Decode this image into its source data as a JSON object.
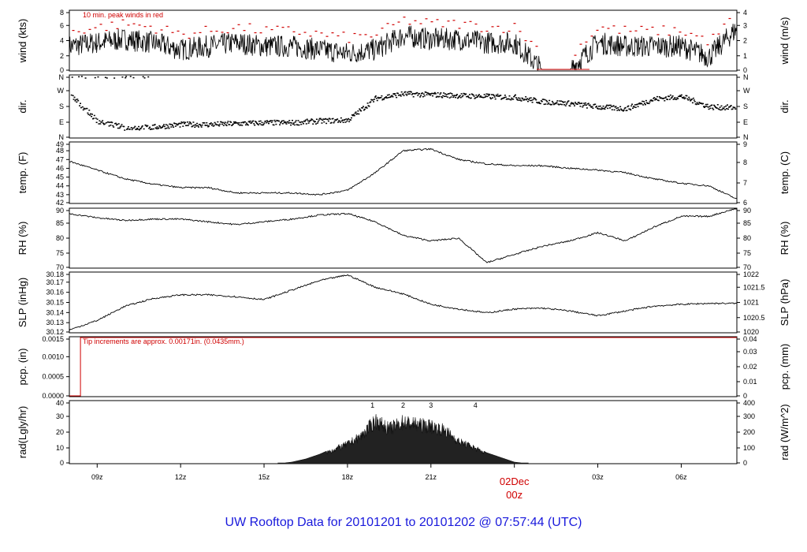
{
  "title": "UW Rooftop Data for 20101201  to  20101202 @ 07:57:44  (UTC)",
  "xaxis": {
    "hours": [
      "09z",
      "12z",
      "15z",
      "18z",
      "21z",
      "03z",
      "06z"
    ],
    "date_label": "02Dec",
    "midnight_label": "00z"
  },
  "colors": {
    "trace": "#000000",
    "peak": "#d00000",
    "title": "#1a1adc",
    "rad_markers": "#8a2be2"
  },
  "chart_data": [
    {
      "type": "line",
      "ylabel_left": "wind (kts)",
      "ylabel_right": "wind (m/s)",
      "ylim": [
        0,
        8.6
      ],
      "yticks_left": [
        "0",
        "2",
        "4",
        "6",
        "8"
      ],
      "yticks_right": [
        "0",
        "1",
        "2",
        "3",
        "4"
      ],
      "annotation": "10 min. peak winds in red",
      "series": [
        {
          "x": [
            8,
            9,
            10,
            11,
            12,
            13,
            14,
            15,
            16,
            17,
            18,
            19,
            20,
            21,
            22,
            23,
            24,
            25,
            26,
            27,
            28,
            29,
            30,
            31,
            32
          ],
          "values": [
            3.5,
            4,
            4.5,
            4,
            3,
            3.5,
            4,
            3.5,
            3.5,
            3,
            2.5,
            3,
            5,
            4.5,
            4.5,
            4,
            4,
            0.2,
            0.2,
            4,
            3.5,
            3.5,
            3.5,
            2,
            6
          ]
        }
      ]
    },
    {
      "type": "scatter",
      "ylabel_left": "dir.",
      "ylabel_right": "dir.",
      "ylim": [
        0,
        360
      ],
      "yticks_left": [
        "N",
        "E",
        "S",
        "W",
        "N"
      ],
      "yticks_right": [
        "N",
        "E",
        "S",
        "W",
        "N"
      ],
      "series": [
        {
          "x": [
            8,
            9,
            10,
            11,
            12,
            13,
            14,
            15,
            16,
            17,
            18,
            19,
            20,
            21,
            22,
            23,
            24,
            25,
            26,
            27,
            28,
            29,
            30,
            31,
            32
          ],
          "values": [
            250,
            100,
            60,
            65,
            80,
            80,
            85,
            90,
            90,
            100,
            105,
            230,
            255,
            250,
            245,
            240,
            235,
            210,
            200,
            180,
            170,
            225,
            240,
            180,
            175
          ]
        }
      ]
    },
    {
      "type": "line",
      "ylabel_left": "temp. (F)",
      "ylabel_right": "temp. (C)",
      "ylim": [
        42,
        49
      ],
      "yticks_left": [
        "42",
        "43",
        "44",
        "45",
        "46",
        "47",
        "48",
        "49"
      ],
      "yticks_right": [
        "6",
        "7",
        "8",
        "9"
      ],
      "series": [
        {
          "x": [
            8,
            9,
            10,
            11,
            12,
            13,
            14,
            15,
            16,
            17,
            18,
            19,
            20,
            21,
            22,
            23,
            24,
            25,
            26,
            27,
            28,
            29,
            30,
            31,
            32
          ],
          "values": [
            46.8,
            45.8,
            44.8,
            44.2,
            43.8,
            43.8,
            43.2,
            43.2,
            43.2,
            43,
            43.5,
            45.5,
            48,
            48.2,
            47,
            46.5,
            46.3,
            46.3,
            46,
            45.8,
            45.5,
            44.8,
            44.3,
            44,
            42.5
          ]
        }
      ]
    },
    {
      "type": "line",
      "ylabel_left": "RH (%)",
      "ylabel_right": "RH (%)",
      "ylim": [
        70,
        92
      ],
      "yticks_left": [
        "70",
        "75",
        "80",
        "85",
        "90"
      ],
      "yticks_right": [
        "70",
        "75",
        "80",
        "85",
        "90"
      ],
      "series": [
        {
          "x": [
            8,
            9,
            10,
            11,
            12,
            13,
            14,
            15,
            16,
            17,
            18,
            19,
            20,
            21,
            22,
            23,
            24,
            25,
            26,
            27,
            28,
            29,
            30,
            31,
            32
          ],
          "values": [
            90,
            88.5,
            87.5,
            88,
            88,
            87,
            86,
            87,
            88,
            89.5,
            90,
            87,
            82,
            80,
            81,
            72,
            75,
            78,
            80,
            83,
            80,
            85,
            89,
            89,
            92
          ]
        }
      ]
    },
    {
      "type": "line",
      "ylabel_left": "SLP (inHg)",
      "ylabel_right": "SLP (hPa)",
      "ylim": [
        30.117,
        30.181
      ],
      "yticks_left": [
        "30.12",
        "30.13",
        "30.14",
        "30.15",
        "30.16",
        "30.17",
        "30.18"
      ],
      "yticks_right": [
        "1020",
        "1020.5",
        "1021",
        "1021.5",
        "1022"
      ],
      "series": [
        {
          "x": [
            8,
            9,
            10,
            11,
            12,
            13,
            14,
            15,
            16,
            17,
            18,
            19,
            20,
            21,
            22,
            23,
            24,
            25,
            26,
            27,
            28,
            29,
            30,
            31,
            32
          ],
          "values": [
            30.12,
            30.13,
            30.145,
            30.153,
            30.157,
            30.157,
            30.155,
            30.152,
            30.162,
            30.172,
            30.178,
            30.165,
            30.158,
            30.147,
            30.142,
            30.138,
            30.142,
            30.143,
            30.14,
            30.135,
            30.14,
            30.145,
            30.147,
            30.148,
            30.148
          ]
        }
      ]
    },
    {
      "type": "line",
      "ylabel_left": "pcp. (in)",
      "ylabel_right": "pcp. (mm)",
      "ylim": [
        0,
        0.0017
      ],
      "yticks_left": [
        "0.0000",
        "0.0005",
        "0.0010",
        "0.0015"
      ],
      "yticks_right": [
        "0",
        "0.01",
        "0.02",
        "0.03",
        "0.04"
      ],
      "annotation": "Tip increments are approx. 0.00171in. (0.0435mm.)",
      "series": [
        {
          "x": [
            8,
            8.4,
            8.4,
            32
          ],
          "values": [
            0,
            0,
            0.00171,
            0.00171
          ]
        }
      ]
    },
    {
      "type": "area",
      "ylabel_left": "rad(Lgly/hr)",
      "ylabel_right": "rad (W/m^2)",
      "ylim": [
        0,
        40
      ],
      "yticks_left": [
        "0",
        "10",
        "20",
        "30",
        "40"
      ],
      "yticks_right": [
        "0",
        "100",
        "200",
        "300",
        "400"
      ],
      "markers": [
        "1",
        "2",
        "3",
        "4"
      ],
      "series": [
        {
          "x": [
            15.5,
            16,
            16.5,
            17,
            17.5,
            18,
            18.5,
            19,
            19.5,
            20,
            20.5,
            21,
            21.5,
            22,
            22.5,
            23,
            23.5,
            24,
            24.5
          ],
          "values": [
            0,
            1,
            3,
            6,
            10,
            14,
            20,
            31,
            25,
            30,
            28,
            27,
            24,
            16,
            12,
            7,
            4,
            1,
            0
          ]
        }
      ]
    }
  ]
}
